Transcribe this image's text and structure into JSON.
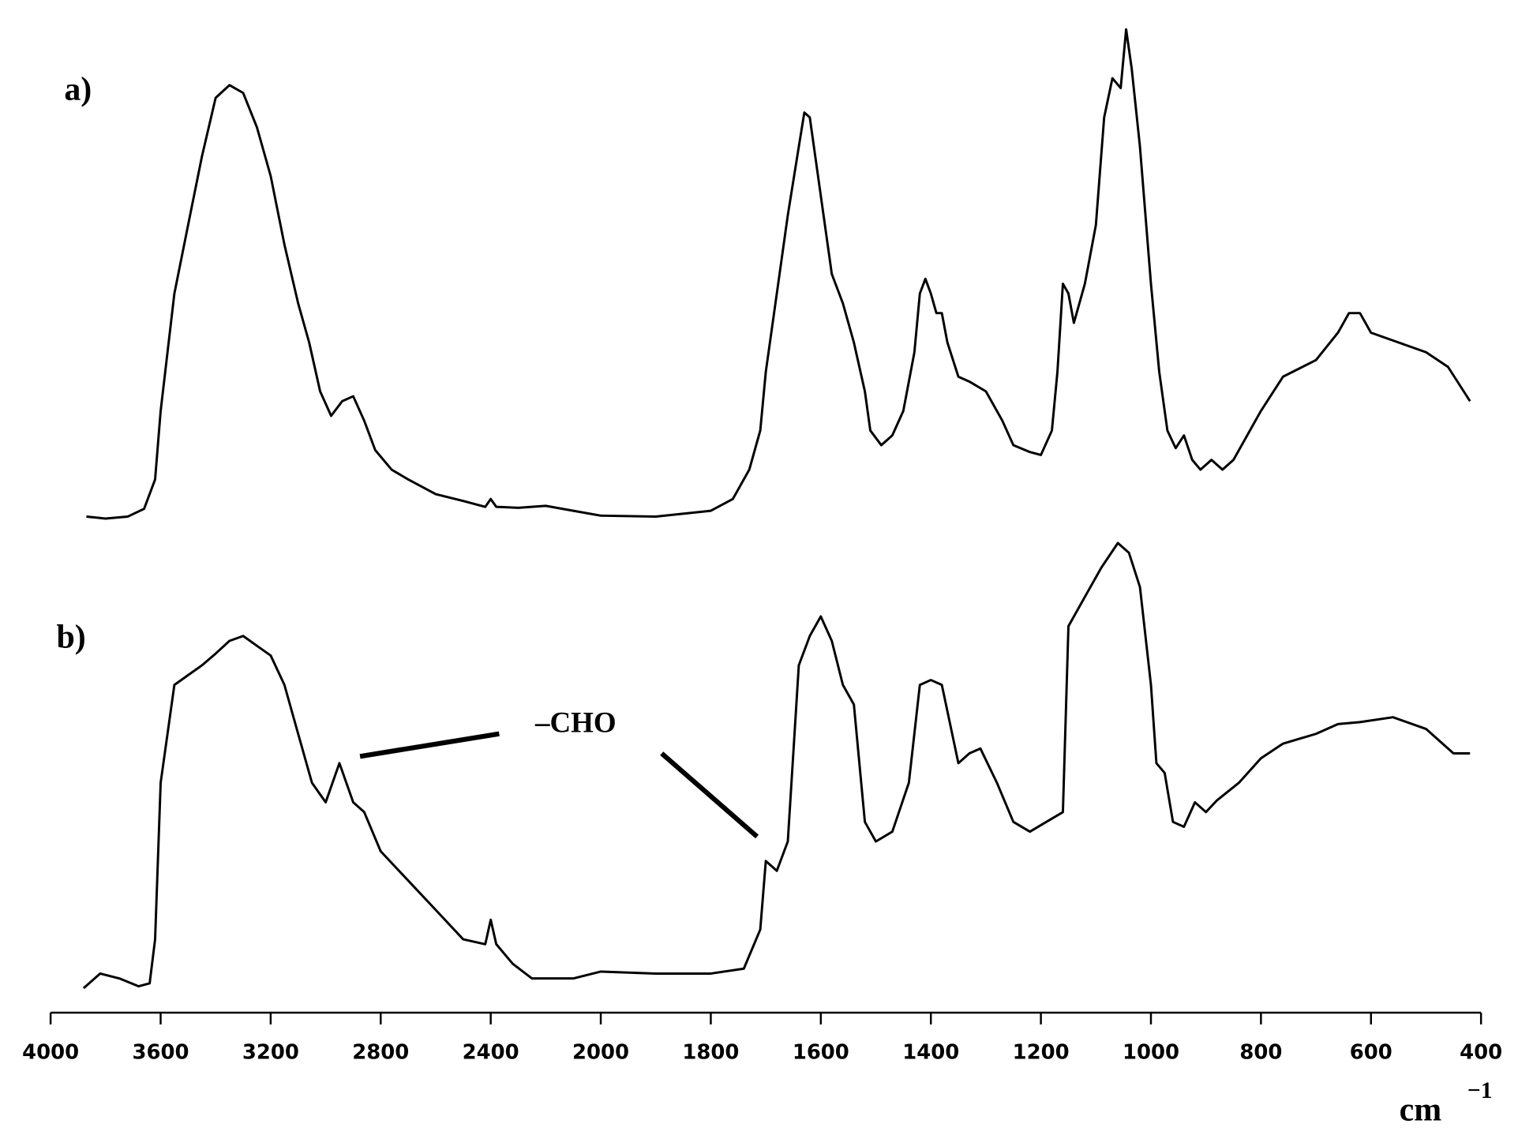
{
  "chart_data": {
    "type": "line",
    "xlabel": "cm",
    "xlabel_superscript": "−1",
    "annotation": "–CHO",
    "xticks": [
      4000,
      3600,
      3200,
      2800,
      2400,
      2000,
      1800,
      1600,
      1400,
      1200,
      1000,
      800,
      600,
      400
    ],
    "xlim": [
      4000,
      400
    ],
    "ylim": [
      0,
      100
    ],
    "series": [
      {
        "name": "a)",
        "color": "#000000",
        "x": [
          3870,
          3800,
          3720,
          3660,
          3620,
          3600,
          3550,
          3500,
          3450,
          3400,
          3350,
          3300,
          3250,
          3200,
          3150,
          3100,
          3060,
          3020,
          2980,
          2940,
          2900,
          2860,
          2820,
          2760,
          2700,
          2600,
          2500,
          2420,
          2400,
          2380,
          2300,
          2200,
          2100,
          2000,
          1900,
          1800,
          1760,
          1730,
          1710,
          1700,
          1680,
          1660,
          1640,
          1630,
          1620,
          1600,
          1580,
          1560,
          1540,
          1520,
          1510,
          1490,
          1470,
          1450,
          1430,
          1420,
          1410,
          1400,
          1390,
          1380,
          1370,
          1350,
          1330,
          1300,
          1270,
          1250,
          1220,
          1200,
          1180,
          1170,
          1160,
          1150,
          1140,
          1120,
          1100,
          1085,
          1070,
          1055,
          1045,
          1035,
          1020,
          1000,
          985,
          970,
          955,
          940,
          925,
          910,
          890,
          870,
          850,
          800,
          760,
          700,
          660,
          640,
          620,
          600,
          550,
          500,
          460,
          420
        ],
        "values": [
          50.2,
          50,
          50.2,
          51,
          54,
          61,
          73,
          80,
          87,
          93,
          94.3,
          93.5,
          90,
          85,
          78,
          72,
          68,
          63,
          60.5,
          62,
          62.5,
          60,
          57,
          55,
          54,
          52.5,
          51.8,
          51.2,
          52,
          51.2,
          51.1,
          51.3,
          50.8,
          50.3,
          50.2,
          50.8,
          52,
          55,
          59,
          65,
          73,
          81,
          88,
          91.5,
          91,
          83,
          75,
          72,
          68,
          63,
          59,
          57.5,
          58.5,
          61,
          67,
          73,
          74.5,
          73,
          71,
          71,
          68,
          64.5,
          64,
          63,
          60,
          57.5,
          56.8,
          56.5,
          59,
          65,
          74,
          73,
          70,
          74,
          80,
          91,
          95,
          94,
          100,
          96,
          88,
          74,
          65,
          59,
          57.2,
          58.5,
          56,
          55,
          56,
          55,
          56,
          61,
          64.5,
          66.2,
          69,
          71,
          71,
          69,
          68,
          67,
          65.5,
          62
        ]
      },
      {
        "name": "b)",
        "color": "#000000",
        "x": [
          3880,
          3820,
          3750,
          3680,
          3640,
          3620,
          3600,
          3550,
          3500,
          3450,
          3400,
          3350,
          3300,
          3250,
          3200,
          3150,
          3100,
          3050,
          3000,
          2950,
          2900,
          2860,
          2800,
          2700,
          2600,
          2500,
          2420,
          2400,
          2380,
          2320,
          2250,
          2100,
          2000,
          1900,
          1800,
          1740,
          1710,
          1700,
          1680,
          1660,
          1640,
          1620,
          1600,
          1580,
          1560,
          1540,
          1520,
          1500,
          1470,
          1440,
          1420,
          1400,
          1380,
          1350,
          1330,
          1310,
          1280,
          1250,
          1220,
          1190,
          1160,
          1150,
          1120,
          1090,
          1060,
          1040,
          1020,
          1000,
          990,
          975,
          960,
          940,
          920,
          900,
          880,
          840,
          800,
          760,
          700,
          660,
          620,
          560,
          500,
          450,
          420
        ],
        "values": [
          2,
          3.5,
          3,
          2.2,
          2.5,
          7,
          23,
          33,
          34,
          35,
          36.2,
          37.5,
          38,
          37,
          36,
          33,
          28,
          23,
          21,
          25,
          21,
          20,
          16,
          13,
          10,
          7,
          6.5,
          9,
          6.5,
          4.5,
          3,
          3,
          3.7,
          3.5,
          3.5,
          4,
          8,
          15,
          14,
          17,
          35,
          38,
          40,
          37.5,
          33,
          31,
          19,
          17,
          18,
          23,
          33,
          33.5,
          33,
          25,
          26,
          26.5,
          23,
          19,
          18,
          19,
          20,
          39,
          42,
          45,
          47.5,
          46.5,
          43,
          33,
          25,
          24,
          19,
          18.5,
          21,
          20,
          21.2,
          23,
          25.5,
          27,
          28,
          29,
          29.2,
          29.7,
          28.5,
          26,
          26
        ]
      }
    ]
  }
}
